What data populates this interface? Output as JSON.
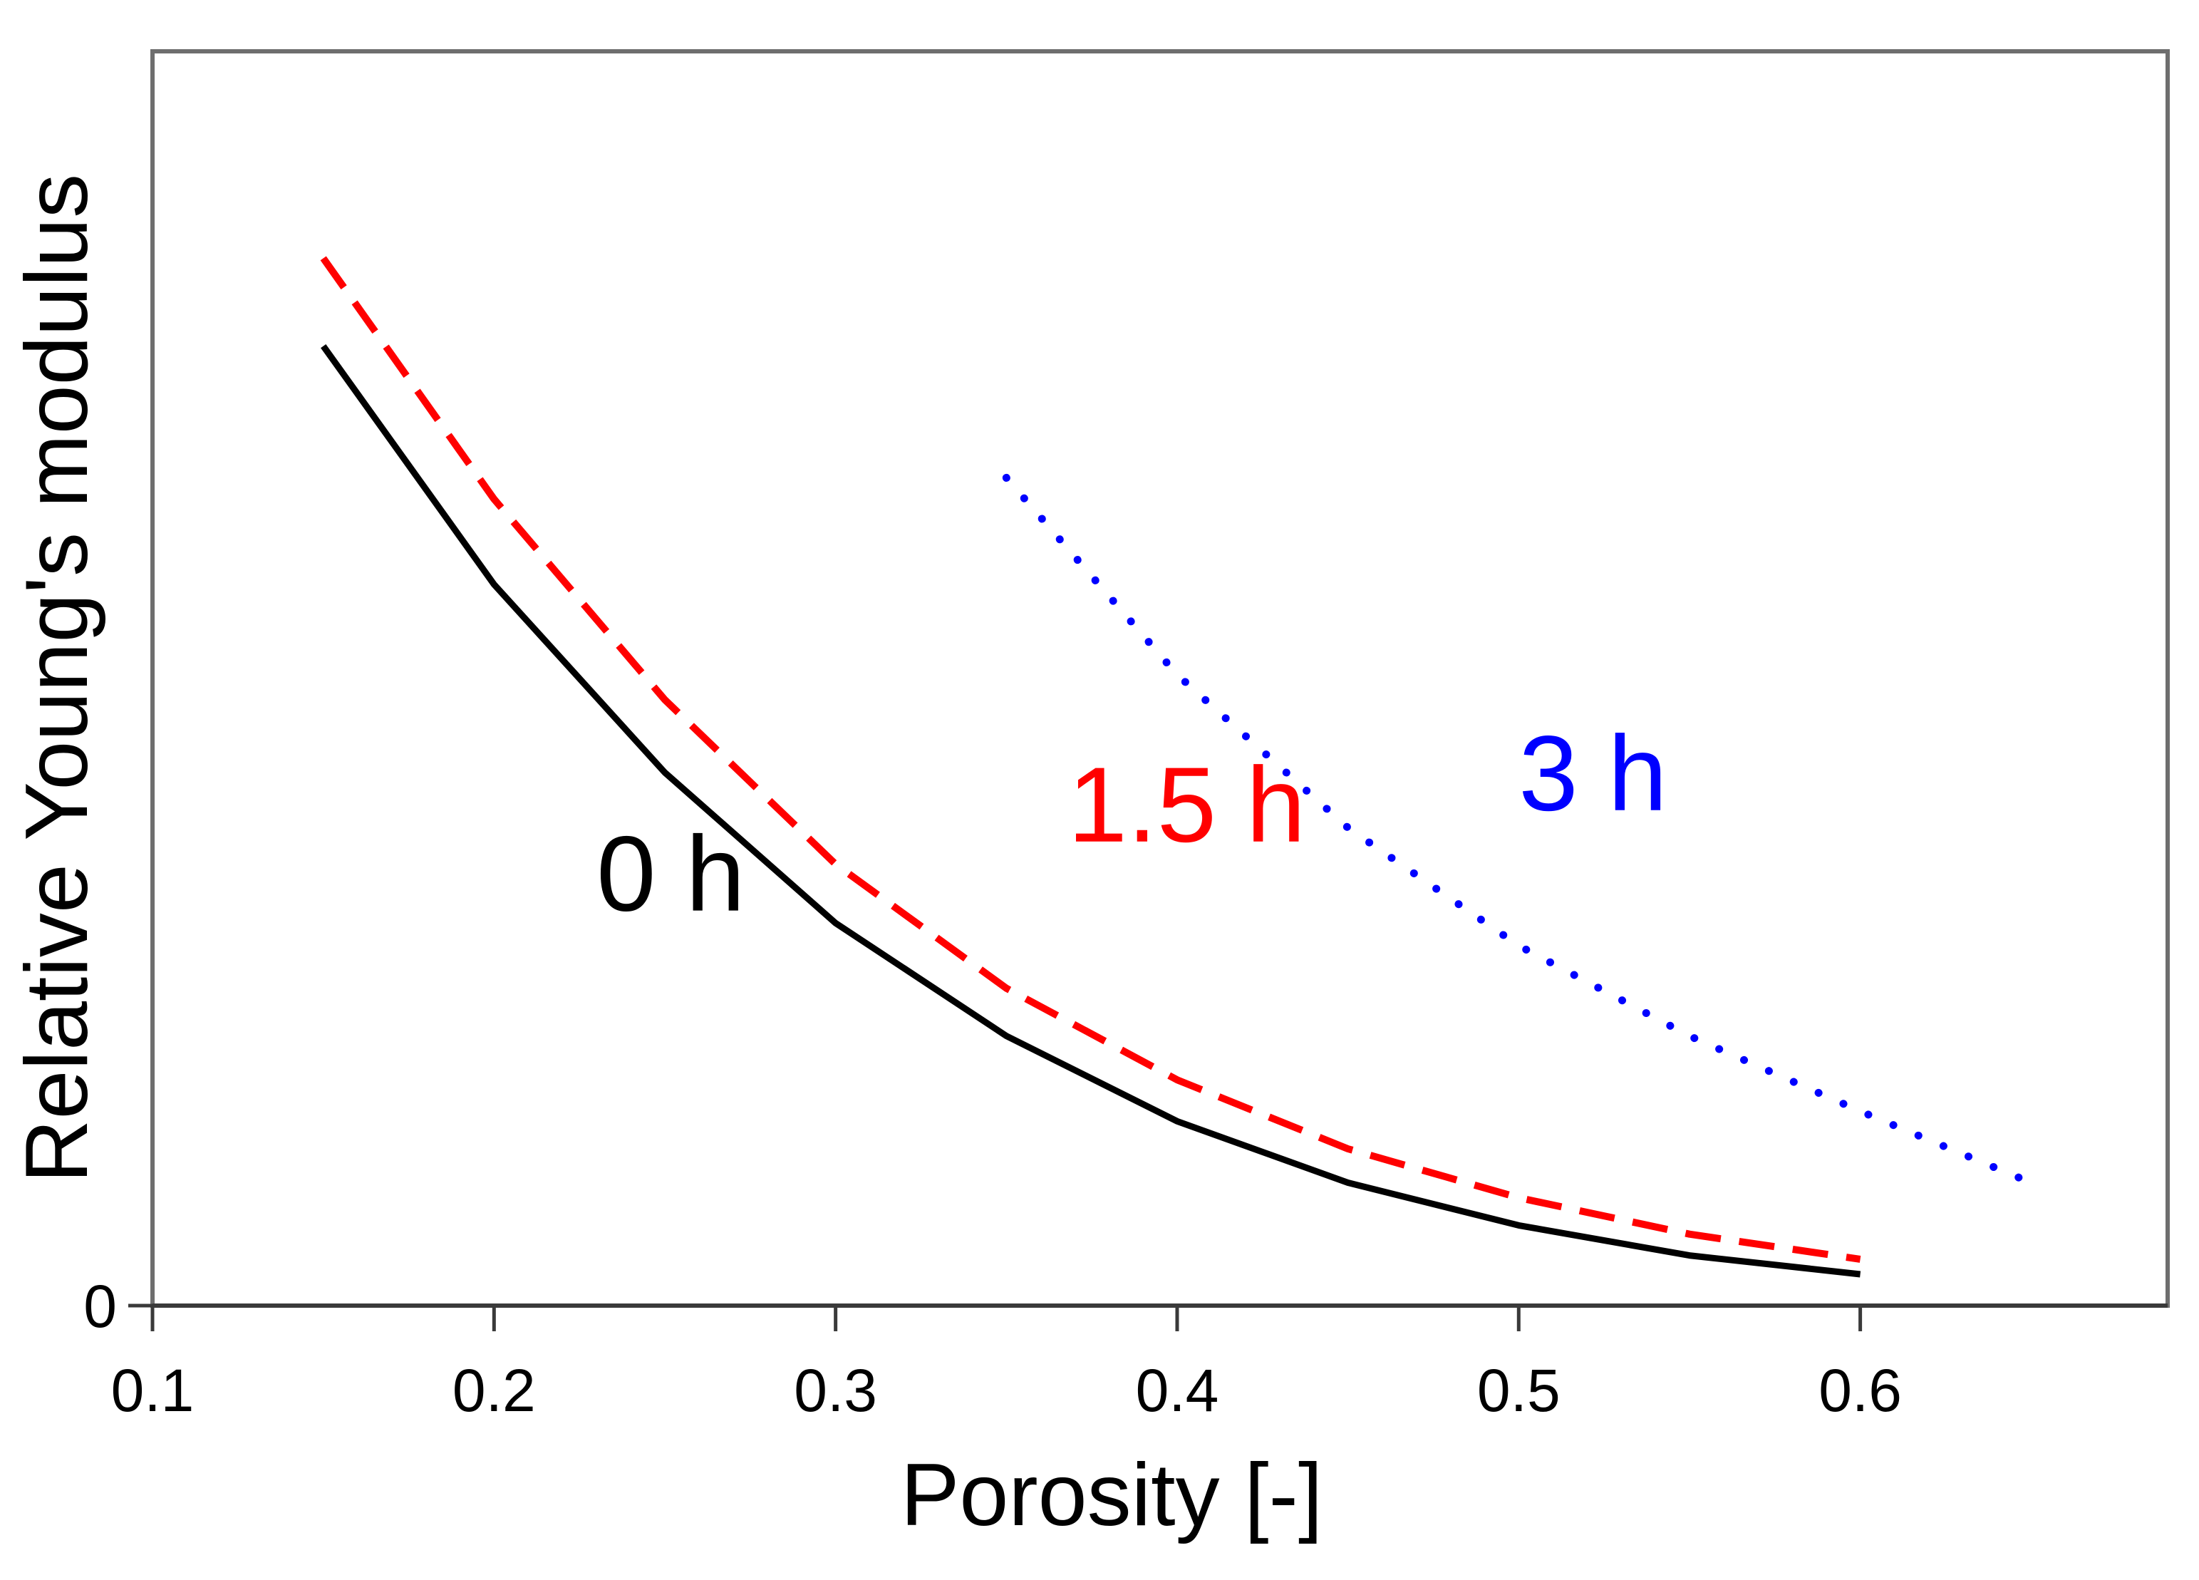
{
  "chart_data": {
    "type": "line",
    "title": "",
    "xlabel": "Porosity [-]",
    "ylabel": "Relative Young's modulus",
    "xlim": [
      0.1,
      0.69
    ],
    "ylim": [
      0,
      1.0
    ],
    "x_ticks": [
      "0.1",
      "0.2",
      "0.3",
      "0.4",
      "0.5",
      "0.6"
    ],
    "y_ticks": [
      "0"
    ],
    "grid": false,
    "series": [
      {
        "name": "0 h",
        "label": "0 h",
        "color": "#000000",
        "style": "solid",
        "x": [
          0.15,
          0.2,
          0.25,
          0.3,
          0.35,
          0.4,
          0.45,
          0.5,
          0.55,
          0.6
        ],
        "y": [
          0.765,
          0.575,
          0.425,
          0.305,
          0.215,
          0.147,
          0.098,
          0.064,
          0.04,
          0.025
        ]
      },
      {
        "name": "1.5 h",
        "label": "1.5 h",
        "color": "#ff0000",
        "style": "dashed",
        "x": [
          0.15,
          0.2,
          0.25,
          0.3,
          0.35,
          0.4,
          0.45,
          0.5,
          0.55,
          0.6
        ],
        "y": [
          0.835,
          0.643,
          0.483,
          0.352,
          0.253,
          0.18,
          0.125,
          0.086,
          0.057,
          0.037
        ]
      },
      {
        "name": "3 h",
        "label": "3 h",
        "color": "#0000ff",
        "style": "dotted",
        "x": [
          0.35,
          0.4,
          0.45,
          0.5,
          0.55,
          0.6,
          0.65
        ],
        "y": [
          0.66,
          0.503,
          0.381,
          0.287,
          0.215,
          0.155,
          0.098
        ]
      }
    ],
    "annotations": [
      {
        "text": "0 h",
        "x": 0.23,
        "y": 0.315,
        "color": "#000000"
      },
      {
        "text": "1.5 h",
        "x": 0.368,
        "y": 0.37,
        "color": "#ff0000"
      },
      {
        "text": "3 h",
        "x": 0.5,
        "y": 0.395,
        "color": "#0000ff"
      }
    ]
  }
}
